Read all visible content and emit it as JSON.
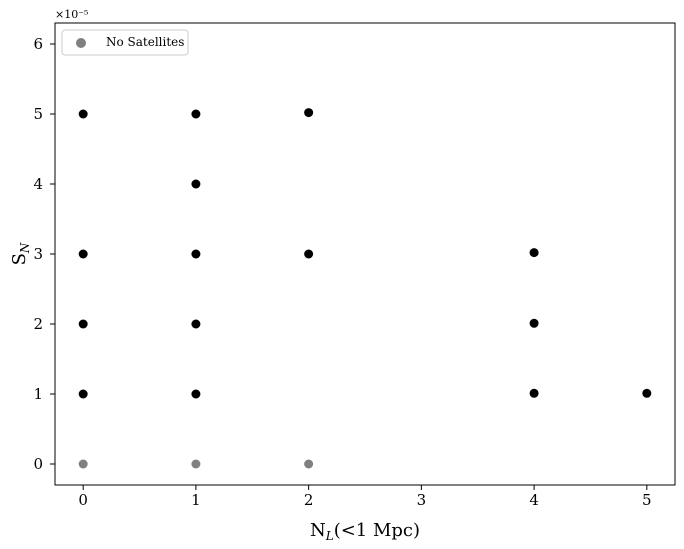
{
  "chart_data": {
    "type": "scatter",
    "xlabel": "N_L(<1 Mpc)",
    "ylabel": "S_N",
    "y_exponent": "×10⁻⁵",
    "xlim": [
      -0.25,
      5.25
    ],
    "ylim": [
      -0.3,
      6.3
    ],
    "x_ticks": [
      0,
      1,
      2,
      3,
      4,
      5
    ],
    "y_ticks": [
      0,
      1,
      2,
      3,
      4,
      5,
      6
    ],
    "y_scale_multiplier": 1e-05,
    "legend": {
      "position": "upper-left",
      "entries": [
        "No Satellites"
      ]
    },
    "grid": false,
    "series": [
      {
        "name": "No Satellites",
        "color": "#808080",
        "points": [
          [
            0,
            0
          ],
          [
            1,
            0
          ],
          [
            2,
            0
          ]
        ]
      },
      {
        "color": "#000000",
        "points": [
          [
            0,
            5
          ],
          [
            0,
            3
          ],
          [
            0,
            2
          ],
          [
            0,
            1
          ],
          [
            1,
            5
          ],
          [
            1,
            4
          ],
          [
            1,
            3
          ],
          [
            1,
            2
          ],
          [
            1,
            1
          ],
          [
            2,
            5.02
          ],
          [
            2,
            3
          ],
          [
            4,
            3.02
          ],
          [
            4,
            2.01
          ],
          [
            4,
            1.01
          ],
          [
            5,
            1.01
          ]
        ]
      }
    ]
  }
}
